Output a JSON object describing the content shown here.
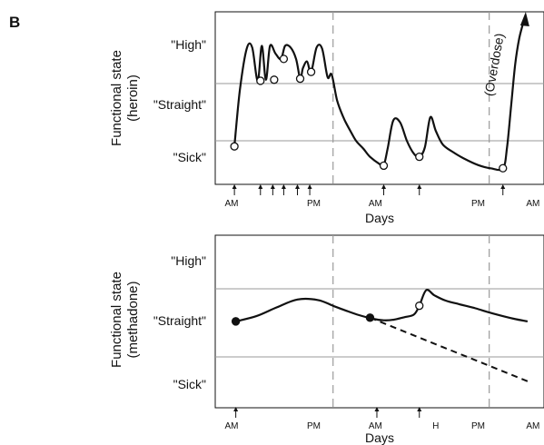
{
  "panel_label": "B",
  "colors": {
    "line": "#111111",
    "grid": "#9a9a9a",
    "marker_open": "#ffffff",
    "marker_closed": "#111111"
  },
  "chart_data": [
    {
      "type": "line",
      "ylabel": "Functional state (heroin)",
      "ylabel_lines": [
        "Functional state",
        "(heroin)"
      ],
      "xlabel": "Days",
      "y_levels": [
        "\"Sick\"",
        "\"Straight\"",
        "\"High\""
      ],
      "ylim": [
        0,
        3
      ],
      "xlim": [
        0,
        24
      ],
      "x_tick_labels": [
        {
          "label": "AM",
          "x": 0
        },
        {
          "label": "PM",
          "x": 6
        },
        {
          "label": "AM",
          "x": 10.5
        },
        {
          "label": "PM",
          "x": 18
        },
        {
          "label": "AM",
          "x": 22
        }
      ],
      "day_boundaries": [
        8.6,
        20.0
      ],
      "dose_times": [
        1.4,
        3.3,
        4.2,
        5.0,
        6.0,
        6.9,
        12.3,
        14.9,
        21.0
      ],
      "series": [
        {
          "x": [
            1.4,
            1.8,
            2.3,
            2.7,
            3.1,
            3.4,
            3.7,
            4.0,
            4.4,
            4.8,
            5.1,
            5.5,
            5.9,
            6.2,
            6.4,
            6.7,
            7.0,
            7.4,
            7.8,
            8.2,
            8.5,
            8.9,
            9.4,
            9.9,
            10.3,
            10.8,
            11.3,
            12.0,
            12.3,
            12.6,
            13.0,
            13.5,
            14.0,
            14.5,
            14.9,
            15.3,
            15.7,
            16.1,
            16.6,
            17.3,
            18.2,
            19.2,
            20.1,
            21.0,
            21.3,
            21.6,
            21.9,
            22.2,
            22.6
          ],
          "y": [
            0.52,
            1.6,
            2.4,
            2.42,
            1.78,
            2.45,
            1.8,
            2.45,
            2.3,
            2.2,
            2.45,
            2.42,
            2.2,
            1.82,
            2.02,
            2.15,
            1.95,
            2.42,
            2.4,
            1.85,
            1.9,
            1.4,
            1.05,
            0.8,
            0.62,
            0.48,
            0.32,
            0.18,
            0.15,
            0.5,
            1.02,
            0.98,
            0.62,
            0.38,
            0.32,
            0.5,
            1.08,
            0.82,
            0.56,
            0.42,
            0.28,
            0.16,
            0.1,
            0.1,
            0.5,
            1.3,
            2.1,
            2.6,
            3.0
          ]
        }
      ],
      "markers_open": [
        {
          "x": 1.4,
          "y": 0.52
        },
        {
          "x": 3.3,
          "y": 1.78
        },
        {
          "x": 4.3,
          "y": 1.8
        },
        {
          "x": 5.0,
          "y": 2.2
        },
        {
          "x": 6.2,
          "y": 1.82
        },
        {
          "x": 7.0,
          "y": 1.95
        },
        {
          "x": 12.3,
          "y": 0.15
        },
        {
          "x": 14.9,
          "y": 0.32
        },
        {
          "x": 21.0,
          "y": 0.1
        }
      ],
      "annotation": {
        "text": "(Overdose)",
        "x": 21.8,
        "y": 1.9
      }
    },
    {
      "type": "line",
      "ylabel": "Functional state (methadone)",
      "ylabel_lines": [
        "Functional state",
        "(methadone)"
      ],
      "xlabel": "Days",
      "y_levels": [
        "\"Sick\"",
        "\"Straight\"",
        "\"High\""
      ],
      "ylim": [
        0,
        3
      ],
      "xlim": [
        0,
        24
      ],
      "x_tick_labels": [
        {
          "label": "AM",
          "x": 0
        },
        {
          "label": "PM",
          "x": 6
        },
        {
          "label": "AM",
          "x": 10.5
        },
        {
          "label": "H",
          "x": 14.9
        },
        {
          "label": "PM",
          "x": 18
        },
        {
          "label": "AM",
          "x": 22
        }
      ],
      "day_boundaries": [
        8.6,
        20.0
      ],
      "dose_times": [
        1.5,
        11.8,
        14.9
      ],
      "series": [
        {
          "x": [
            1.5,
            3.0,
            4.5,
            6.0,
            7.5,
            8.6,
            9.5,
            10.5,
            11.5,
            12.3,
            13.0,
            13.8,
            14.5,
            14.9,
            15.4,
            16.0,
            16.8,
            17.8,
            19.0,
            20.3,
            21.8,
            22.8
          ],
          "y": [
            1.45,
            1.55,
            1.72,
            1.87,
            1.86,
            1.75,
            1.66,
            1.57,
            1.5,
            1.47,
            1.48,
            1.53,
            1.58,
            1.75,
            2.05,
            1.95,
            1.85,
            1.78,
            1.7,
            1.6,
            1.5,
            1.45
          ]
        },
        {
          "style": "dashed",
          "x": [
            11.3,
            22.8
          ],
          "y": [
            1.52,
            0.3
          ]
        }
      ],
      "markers_closed": [
        {
          "x": 1.5,
          "y": 1.45
        },
        {
          "x": 11.3,
          "y": 1.52
        }
      ],
      "markers_open": [
        {
          "x": 14.9,
          "y": 1.75
        }
      ]
    }
  ]
}
